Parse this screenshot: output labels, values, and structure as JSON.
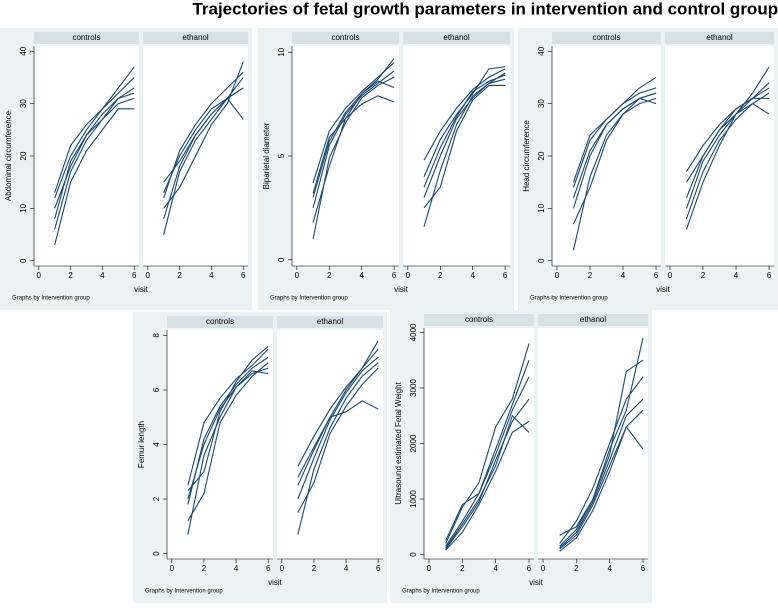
{
  "title": "Trajectories of fetal growth parameters in intervention and control groups",
  "chart_data": [
    {
      "type": "line",
      "ylabel": "Abdominal circumference",
      "xlabel": "visit",
      "note": "Graphs by Intervention group",
      "color": "#1a476f",
      "x": [
        1,
        2,
        3,
        4,
        5,
        6
      ],
      "xlim": [
        -0.3,
        6.3
      ],
      "xticks": [
        0,
        2,
        4,
        6
      ],
      "ylim": [
        -1,
        41
      ],
      "yticks": [
        0,
        10,
        20,
        30,
        40
      ],
      "panels": [
        {
          "title": "controls",
          "series": [
            {
              "values": [
                12,
                20,
                25,
                29,
                32,
                35
              ]
            },
            {
              "values": [
                6,
                17,
                23,
                27,
                30,
                31
              ]
            },
            {
              "values": [
                10,
                18,
                24,
                28,
                31,
                33
              ]
            },
            {
              "values": [
                3,
                15,
                21,
                25,
                29,
                29
              ]
            },
            {
              "values": [
                13,
                22,
                26,
                29,
                33,
                37
              ]
            },
            {
              "values": [
                8,
                19,
                24,
                27,
                31,
                32
              ]
            }
          ]
        },
        {
          "title": "ethanol",
          "series": [
            {
              "values": [
                12,
                21,
                26,
                30,
                33,
                36
              ]
            },
            {
              "values": [
                5,
                17,
                23,
                27,
                31,
                33
              ]
            },
            {
              "values": [
                15,
                19,
                24,
                28,
                31,
                27
              ]
            },
            {
              "values": [
                8,
                18,
                24,
                28,
                31,
                35
              ]
            },
            {
              "values": [
                10,
                14,
                20,
                26,
                30,
                38
              ]
            },
            {
              "values": [
                13,
                20,
                25,
                29,
                31,
                33
              ]
            }
          ]
        }
      ]
    },
    {
      "type": "line",
      "ylabel": "Biparietal diameter",
      "xlabel": "visit",
      "note": "Graphs by Intervention group",
      "color": "#1a476f",
      "x": [
        1,
        2,
        3,
        4,
        5,
        6
      ],
      "xlim": [
        -0.3,
        6.3
      ],
      "xticks": [
        0,
        2,
        4,
        6
      ],
      "ylim": [
        -0.3,
        10.3
      ],
      "yticks": [
        0,
        5,
        10
      ],
      "panels": [
        {
          "title": "controls",
          "series": [
            {
              "values": [
                3.7,
                6.2,
                7.3,
                8.1,
                8.8,
                9.5
              ]
            },
            {
              "values": [
                1,
                4.9,
                6.6,
                7.8,
                8.4,
                8.8
              ]
            },
            {
              "values": [
                2.5,
                5.5,
                7,
                7.9,
                8.5,
                9.1
              ]
            },
            {
              "values": [
                3.2,
                5.9,
                6.8,
                7.5,
                7.9,
                7.6
              ]
            },
            {
              "values": [
                1.8,
                4.5,
                6.8,
                8,
                8.7,
                9.7
              ]
            },
            {
              "values": [
                3,
                5.7,
                7.1,
                8,
                8.6,
                8.3
              ]
            }
          ]
        },
        {
          "title": "ethanol",
          "series": [
            {
              "values": [
                4.8,
                6.2,
                7.3,
                8.2,
                8.8,
                9.2
              ]
            },
            {
              "values": [
                1.6,
                4.3,
                6.5,
                7.9,
                8.5,
                8.7
              ]
            },
            {
              "values": [
                3.5,
                5.4,
                6.9,
                8.1,
                8.6,
                8.9
              ]
            },
            {
              "values": [
                2.5,
                3.5,
                6.2,
                7.7,
                8.4,
                8.4
              ]
            },
            {
              "values": [
                4,
                5.8,
                7,
                8,
                9.2,
                9.3
              ]
            },
            {
              "values": [
                3,
                5,
                6.8,
                7.8,
                8.5,
                9
              ]
            }
          ]
        }
      ]
    },
    {
      "type": "line",
      "ylabel": "Head circumference",
      "xlabel": "visit",
      "note": "Graphs by Intervention group",
      "color": "#1a476f",
      "x": [
        1,
        2,
        3,
        4,
        5,
        6
      ],
      "xlim": [
        -0.3,
        6.3
      ],
      "xticks": [
        0,
        2,
        4,
        6
      ],
      "ylim": [
        -1,
        41
      ],
      "yticks": [
        0,
        10,
        20,
        30,
        40
      ],
      "panels": [
        {
          "title": "controls",
          "series": [
            {
              "values": [
                14,
                23,
                27,
                30,
                32,
                33
              ]
            },
            {
              "values": [
                2,
                16,
                24,
                28,
                30,
                31
              ]
            },
            {
              "values": [
                10,
                20,
                26,
                29,
                31,
                32
              ]
            },
            {
              "values": [
                7,
                14,
                23,
                28,
                31,
                32
              ]
            },
            {
              "values": [
                15,
                24,
                27,
                30,
                33,
                35
              ]
            },
            {
              "values": [
                12,
                21,
                26,
                29,
                31,
                30
              ]
            }
          ]
        },
        {
          "title": "ethanol",
          "series": [
            {
              "values": [
                17,
                22,
                26,
                29,
                31,
                33
              ]
            },
            {
              "values": [
                6,
                15,
                22,
                28,
                30,
                32
              ]
            },
            {
              "values": [
                12,
                20,
                25,
                28,
                32,
                37
              ]
            },
            {
              "values": [
                8,
                17,
                23,
                27,
                30,
                28
              ]
            },
            {
              "values": [
                15,
                20,
                25,
                29,
                31,
                34
              ]
            },
            {
              "values": [
                10,
                19,
                24,
                28,
                31,
                31
              ]
            }
          ]
        }
      ]
    },
    {
      "type": "line",
      "ylabel": "Femur length",
      "xlabel": "visit",
      "note": "Graphs by Intervention group",
      "color": "#1a476f",
      "x": [
        1,
        2,
        3,
        4,
        5,
        6
      ],
      "xlim": [
        -0.3,
        6.3
      ],
      "xticks": [
        0,
        2,
        4,
        6
      ],
      "ylim": [
        -0.2,
        8.2
      ],
      "yticks": [
        0,
        2,
        4,
        6,
        8
      ],
      "panels": [
        {
          "title": "controls",
          "series": [
            {
              "values": [
                2.5,
                4.8,
                5.7,
                6.4,
                6.9,
                7.5
              ]
            },
            {
              "values": [
                0.7,
                3.6,
                5,
                6.1,
                6.6,
                6.8
              ]
            },
            {
              "values": [
                1.8,
                4.2,
                5.4,
                6.2,
                6.8,
                7.2
              ]
            },
            {
              "values": [
                1.2,
                2.2,
                4.8,
                5.8,
                6.5,
                7
              ]
            },
            {
              "values": [
                2.3,
                3,
                5.2,
                6.3,
                7.1,
                7.6
              ]
            },
            {
              "values": [
                2,
                4,
                5.3,
                6.1,
                6.7,
                6.6
              ]
            }
          ]
        },
        {
          "title": "ethanol",
          "series": [
            {
              "values": [
                3.2,
                4.3,
                5.3,
                6.1,
                6.8,
                7.8
              ]
            },
            {
              "values": [
                0.7,
                3.1,
                4.6,
                5.7,
                6.5,
                7
              ]
            },
            {
              "values": [
                2.5,
                3.8,
                5,
                6,
                6.8,
                7.5
              ]
            },
            {
              "values": [
                1.5,
                2.6,
                4.4,
                5.4,
                6.2,
                6.8
              ]
            },
            {
              "values": [
                2.8,
                3.9,
                5,
                5.2,
                5.6,
                5.3
              ]
            },
            {
              "values": [
                2,
                3.5,
                4.9,
                5.9,
                6.7,
                7.2
              ]
            }
          ]
        }
      ]
    },
    {
      "type": "line",
      "ylabel": "Ultrasound estimated Fetal Weight",
      "xlabel": "visit",
      "note": "Graphs by Intervention group",
      "color": "#1a476f",
      "x": [
        1,
        2,
        3,
        4,
        5,
        6
      ],
      "xlim": [
        -0.3,
        6.3
      ],
      "xticks": [
        0,
        2,
        4,
        6
      ],
      "ylim": [
        -80,
        4080
      ],
      "yticks": [
        0,
        1000,
        2000,
        3000,
        4000
      ],
      "panels": [
        {
          "title": "controls",
          "series": [
            {
              "values": [
                200,
                850,
                1300,
                2300,
                2800,
                3800
              ]
            },
            {
              "values": [
                80,
                400,
                900,
                1500,
                2200,
                2400
              ]
            },
            {
              "values": [
                150,
                600,
                1100,
                1800,
                2600,
                3200
              ]
            },
            {
              "values": [
                100,
                500,
                950,
                1700,
                2400,
                2800
              ]
            },
            {
              "values": [
                250,
                900,
                1100,
                1900,
                2700,
                3500
              ]
            },
            {
              "values": [
                120,
                550,
                1000,
                1600,
                2500,
                2200
              ]
            }
          ]
        },
        {
          "title": "ethanol",
          "series": [
            {
              "values": [
                350,
                500,
                1000,
                1800,
                3300,
                3500
              ]
            },
            {
              "values": [
                60,
                300,
                800,
                1500,
                2300,
                2600
              ]
            },
            {
              "values": [
                150,
                450,
                1000,
                1900,
                2600,
                3900
              ]
            },
            {
              "values": [
                100,
                350,
                900,
                1600,
                2300,
                1900
              ]
            },
            {
              "values": [
                200,
                600,
                1200,
                2000,
                2800,
                3200
              ]
            },
            {
              "values": [
                120,
                400,
                950,
                1700,
                2500,
                2800
              ]
            }
          ]
        }
      ]
    }
  ]
}
